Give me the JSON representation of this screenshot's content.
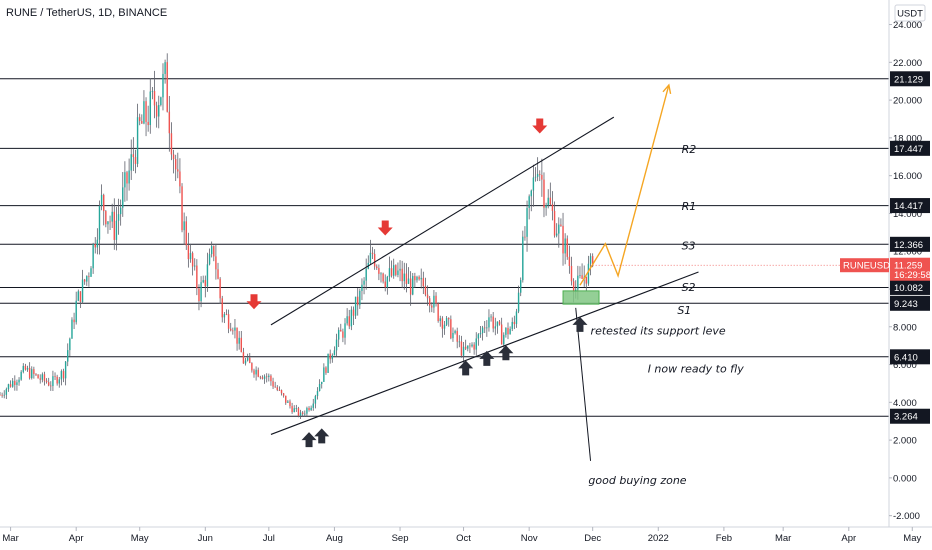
{
  "chart_data": {
    "type": "candlestick",
    "title": "RUNE / TetherUS, 1D, BINANCE",
    "currency": "USDT",
    "symbol": "RUNEUSDT",
    "current_price": "11.259",
    "countdown": "16:29:58",
    "y_ticks": [
      "24.000",
      "22.000",
      "20.000",
      "18.000",
      "16.000",
      "14.000",
      "12.000",
      "10.000",
      "8.000",
      "6.000",
      "4.000",
      "2.000",
      "0.000",
      "-2.000"
    ],
    "y_tick_values": [
      24,
      22,
      20,
      18,
      16,
      14,
      12,
      10,
      8,
      6,
      4,
      2,
      0,
      -2
    ],
    "ylim": [
      -2.6,
      25.3
    ],
    "xlim": [
      0,
      420
    ],
    "x_ticks": [
      {
        "label": "Mar",
        "t": 5
      },
      {
        "label": "Apr",
        "t": 36
      },
      {
        "label": "May",
        "t": 66
      },
      {
        "label": "Jun",
        "t": 97
      },
      {
        "label": "Jul",
        "t": 127
      },
      {
        "label": "Aug",
        "t": 158
      },
      {
        "label": "Sep",
        "t": 189
      },
      {
        "label": "Oct",
        "t": 219
      },
      {
        "label": "Nov",
        "t": 250
      },
      {
        "label": "Dec",
        "t": 280
      },
      {
        "label": "2022",
        "t": 311
      },
      {
        "label": "Feb",
        "t": 342
      },
      {
        "label": "Mar",
        "t": 370
      },
      {
        "label": "Apr",
        "t": 401
      },
      {
        "label": "May",
        "t": 431
      }
    ],
    "levels": [
      {
        "value": 21.129,
        "label": "21.129",
        "name": ""
      },
      {
        "value": 17.447,
        "label": "17.447",
        "name": "R2"
      },
      {
        "value": 14.417,
        "label": "14.417",
        "name": "R1"
      },
      {
        "value": 12.366,
        "label": "12.366",
        "name": "S3"
      },
      {
        "value": 10.082,
        "label": "10.082",
        "name": "S2"
      },
      {
        "value": 9.243,
        "label": "9.243",
        "name": "S1"
      },
      {
        "value": 6.41,
        "label": "6.410",
        "name": ""
      },
      {
        "value": 3.264,
        "label": "3.264",
        "name": ""
      }
    ],
    "close_path": [
      [
        0,
        4.4
      ],
      [
        6,
        5.1
      ],
      [
        12,
        5.7
      ],
      [
        18,
        5.3
      ],
      [
        24,
        5.0
      ],
      [
        30,
        5.6
      ],
      [
        36,
        9.2
      ],
      [
        42,
        11.0
      ],
      [
        48,
        14.6
      ],
      [
        54,
        13.2
      ],
      [
        60,
        15.7
      ],
      [
        66,
        18.5
      ],
      [
        72,
        19.7
      ],
      [
        78,
        21.0
      ],
      [
        82,
        17.2
      ],
      [
        86,
        13.8
      ],
      [
        90,
        11.5
      ],
      [
        94,
        9.8
      ],
      [
        97,
        10.6
      ],
      [
        101,
        12.1
      ],
      [
        105,
        8.7
      ],
      [
        110,
        8.2
      ],
      [
        115,
        6.2
      ],
      [
        121,
        5.7
      ],
      [
        127,
        5.3
      ],
      [
        132,
        4.5
      ],
      [
        137,
        3.8
      ],
      [
        142,
        3.3
      ],
      [
        147,
        3.9
      ],
      [
        153,
        5.6
      ],
      [
        158,
        7.1
      ],
      [
        164,
        8.1
      ],
      [
        170,
        9.6
      ],
      [
        176,
        11.9
      ],
      [
        182,
        10.6
      ],
      [
        188,
        10.8
      ],
      [
        195,
        10.1
      ],
      [
        201,
        10.2
      ],
      [
        207,
        8.7
      ],
      [
        213,
        7.8
      ],
      [
        219,
        6.6
      ],
      [
        225,
        7.2
      ],
      [
        231,
        8.6
      ],
      [
        237,
        7.5
      ],
      [
        243,
        8.1
      ],
      [
        247,
        12.1
      ],
      [
        251,
        14.9
      ],
      [
        254,
        16.9
      ],
      [
        257,
        15.2
      ],
      [
        262,
        13.6
      ],
      [
        267,
        12.2
      ],
      [
        272,
        10.0
      ],
      [
        276,
        10.7
      ],
      [
        280,
        11.26
      ]
    ],
    "trendlines": [
      {
        "from": [
          128,
          2.3
        ],
        "to": [
          330,
          10.9
        ]
      },
      {
        "from": [
          128,
          8.1
        ],
        "to": [
          290,
          19.1
        ]
      }
    ],
    "down_arrows": [
      [
        120,
        9.3
      ],
      [
        182,
        13.2
      ],
      [
        255,
        18.6
      ]
    ],
    "up_arrows": [
      [
        146,
        2.0
      ],
      [
        152,
        2.2
      ],
      [
        220,
        5.8
      ],
      [
        230,
        6.3
      ],
      [
        239,
        6.6
      ],
      [
        274,
        8.1
      ]
    ],
    "forecast_path": [
      [
        274,
        10.2
      ],
      [
        286,
        12.4
      ],
      [
        292,
        10.7
      ],
      [
        316,
        20.8
      ]
    ],
    "buy_zone": {
      "t0": 266,
      "t1": 283,
      "v0": 9.2,
      "v1": 9.9
    },
    "annotations": [
      {
        "text": "R2",
        "t": 322,
        "v": 17.4
      },
      {
        "text": "R1",
        "t": 322,
        "v": 14.4
      },
      {
        "text": "S3",
        "t": 322,
        "v": 12.3
      },
      {
        "text": "S2",
        "t": 322,
        "v": 10.1
      },
      {
        "text": "S1",
        "t": 320,
        "v": 8.9
      },
      {
        "text": "retested its support leve",
        "t": 279,
        "v": 7.8
      },
      {
        "text": "I now ready to fly",
        "t": 306,
        "v": 5.8
      },
      {
        "text": "good  buying zone",
        "t": 278,
        "v": -0.1
      }
    ],
    "pointer_line": {
      "from": [
        272,
        9.0
      ],
      "to": [
        279,
        0.9
      ]
    }
  }
}
